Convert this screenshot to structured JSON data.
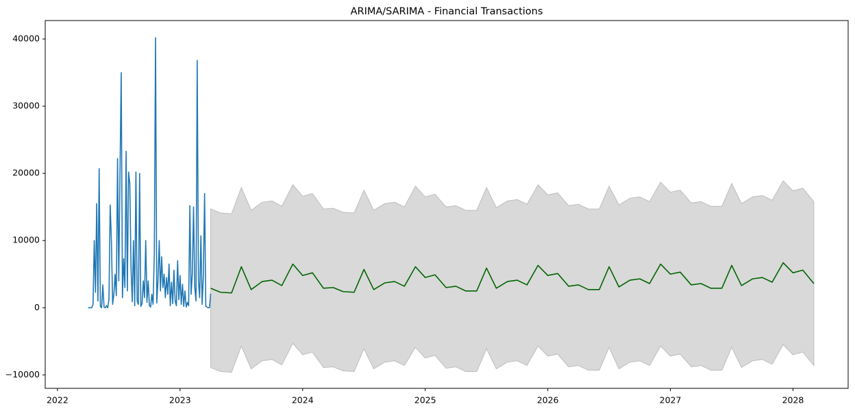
{
  "chart_data": {
    "type": "line",
    "title": "ARIMA/SARIMA - Financial Transactions",
    "xlim": [
      2021.9,
      2028.45
    ],
    "xticks": [
      2022,
      2023,
      2024,
      2025,
      2026,
      2027,
      2028
    ],
    "ylim": [
      -12000,
      42750
    ],
    "yticks": [
      {
        "value": -10000,
        "label": "−10000"
      },
      0,
      10000,
      20000,
      30000,
      40000
    ],
    "series": [
      {
        "color": "#1f77b4",
        "x": [
          2022.25,
          2022.26,
          2022.27,
          2022.28,
          2022.29,
          2022.3,
          2022.31,
          2022.32,
          2022.33,
          2022.34,
          2022.35,
          2022.36,
          2022.37,
          2022.38,
          2022.39,
          2022.4,
          2022.41,
          2022.42,
          2022.43,
          2022.44,
          2022.45,
          2022.46,
          2022.47,
          2022.48,
          2022.49,
          2022.5,
          2022.51,
          2022.52,
          2022.53,
          2022.54,
          2022.55,
          2022.56,
          2022.57,
          2022.58,
          2022.59,
          2022.6,
          2022.61,
          2022.62,
          2022.63,
          2022.64,
          2022.65,
          2022.66,
          2022.67,
          2022.68,
          2022.69,
          2022.7,
          2022.71,
          2022.72,
          2022.73,
          2022.74,
          2022.75,
          2022.76,
          2022.77,
          2022.78,
          2022.79,
          2022.8,
          2022.81,
          2022.82,
          2022.83,
          2022.84,
          2022.85,
          2022.86,
          2022.87,
          2022.88,
          2022.89,
          2022.9,
          2022.91,
          2022.92,
          2022.93,
          2022.94,
          2022.95,
          2022.96,
          2022.97,
          2022.98,
          2022.99,
          2023.0,
          2023.01,
          2023.02,
          2023.03,
          2023.04,
          2023.05,
          2023.06,
          2023.07,
          2023.08,
          2023.09,
          2023.1,
          2023.11,
          2023.12,
          2023.13,
          2023.14,
          2023.15,
          2023.16,
          2023.17,
          2023.18,
          2023.19,
          2023.2,
          2023.21,
          2023.22,
          2023.23,
          2023.24,
          2023.25
        ],
        "values": [
          0,
          0,
          0,
          0,
          500,
          10000,
          2300,
          15500,
          1000,
          20700,
          200,
          0,
          3400,
          100,
          0,
          300,
          0,
          1200,
          15300,
          10000,
          500,
          2000,
          5000,
          1800,
          22200,
          4000,
          20000,
          35000,
          1500,
          7300,
          3000,
          23300,
          2500,
          20200,
          18500,
          6000,
          900,
          10000,
          300,
          20200,
          1000,
          500,
          20000,
          200,
          600,
          4000,
          1500,
          10000,
          800,
          4000,
          300,
          100,
          2000,
          500,
          8000,
          40200,
          700,
          4000,
          10000,
          2500,
          7600,
          3000,
          5000,
          1500,
          4500,
          2000,
          6500,
          300,
          3800,
          600,
          5600,
          1000,
          300,
          7000,
          1200,
          4800,
          500,
          3500,
          200,
          2500,
          100,
          800,
          300,
          15200,
          2000,
          5000,
          15000,
          3000,
          1000,
          36800,
          4000,
          1500,
          10700,
          500,
          4700,
          17000,
          200,
          100,
          0,
          0,
          2100
        ]
      },
      {
        "color": "#006400",
        "band_color": "#d9d9d9",
        "x": [
          2023.25,
          2023.33,
          2023.42,
          2023.5,
          2023.58,
          2023.67,
          2023.75,
          2023.83,
          2023.92,
          2024,
          2024.08,
          2024.17,
          2024.25,
          2024.33,
          2024.42,
          2024.5,
          2024.58,
          2024.67,
          2024.75,
          2024.83,
          2024.92,
          2025,
          2025.08,
          2025.17,
          2025.25,
          2025.33,
          2025.42,
          2025.5,
          2025.58,
          2025.67,
          2025.75,
          2025.83,
          2025.92,
          2026,
          2026.08,
          2026.17,
          2026.25,
          2026.33,
          2026.42,
          2026.5,
          2026.58,
          2026.67,
          2026.75,
          2026.83,
          2026.92,
          2027,
          2027.08,
          2027.17,
          2027.25,
          2027.33,
          2027.42,
          2027.5,
          2027.58,
          2027.67,
          2027.75,
          2027.83,
          2027.92,
          2028,
          2028.08,
          2028.17
        ],
        "values": [
          2900,
          2300,
          2200,
          6100,
          2700,
          3900,
          4100,
          3300,
          6500,
          4800,
          5200,
          2900,
          3000,
          2400,
          2300,
          5700,
          2700,
          3700,
          3900,
          3200,
          6100,
          4500,
          4900,
          3000,
          3200,
          2500,
          2500,
          5900,
          2900,
          3900,
          4100,
          3400,
          6300,
          4800,
          5100,
          3200,
          3400,
          2700,
          2700,
          6100,
          3100,
          4100,
          4300,
          3600,
          6500,
          5000,
          5300,
          3400,
          3600,
          2900,
          2900,
          6300,
          3300,
          4300,
          4500,
          3800,
          6700,
          5200,
          5600,
          3600
        ],
        "upper": [
          14700,
          14100,
          14000,
          17900,
          14500,
          15700,
          15900,
          15100,
          18300,
          16600,
          17000,
          14700,
          14800,
          14200,
          14100,
          17500,
          14500,
          15500,
          15700,
          15000,
          18100,
          16500,
          16900,
          15000,
          15200,
          14500,
          14500,
          17900,
          14900,
          15900,
          16100,
          15400,
          18300,
          16800,
          17100,
          15200,
          15400,
          14700,
          14700,
          18100,
          15300,
          16300,
          16500,
          15800,
          18700,
          17200,
          17500,
          15600,
          15800,
          15100,
          15100,
          18500,
          15500,
          16500,
          16700,
          16000,
          18900,
          17400,
          17800,
          15800
        ],
        "lower": [
          -8900,
          -9500,
          -9600,
          -5700,
          -9100,
          -7900,
          -7700,
          -8500,
          -5300,
          -7000,
          -6600,
          -8900,
          -8800,
          -9400,
          -9500,
          -6100,
          -9100,
          -8100,
          -7900,
          -8600,
          -5900,
          -7500,
          -7100,
          -9000,
          -8800,
          -9500,
          -9500,
          -6100,
          -9100,
          -8100,
          -7900,
          -8600,
          -5700,
          -7200,
          -6900,
          -8800,
          -8600,
          -9300,
          -9300,
          -5900,
          -9100,
          -8100,
          -7900,
          -8600,
          -5700,
          -7200,
          -6900,
          -8800,
          -8600,
          -9300,
          -9300,
          -5900,
          -8900,
          -7900,
          -7700,
          -8400,
          -5500,
          -7000,
          -6600,
          -8600
        ]
      }
    ]
  }
}
